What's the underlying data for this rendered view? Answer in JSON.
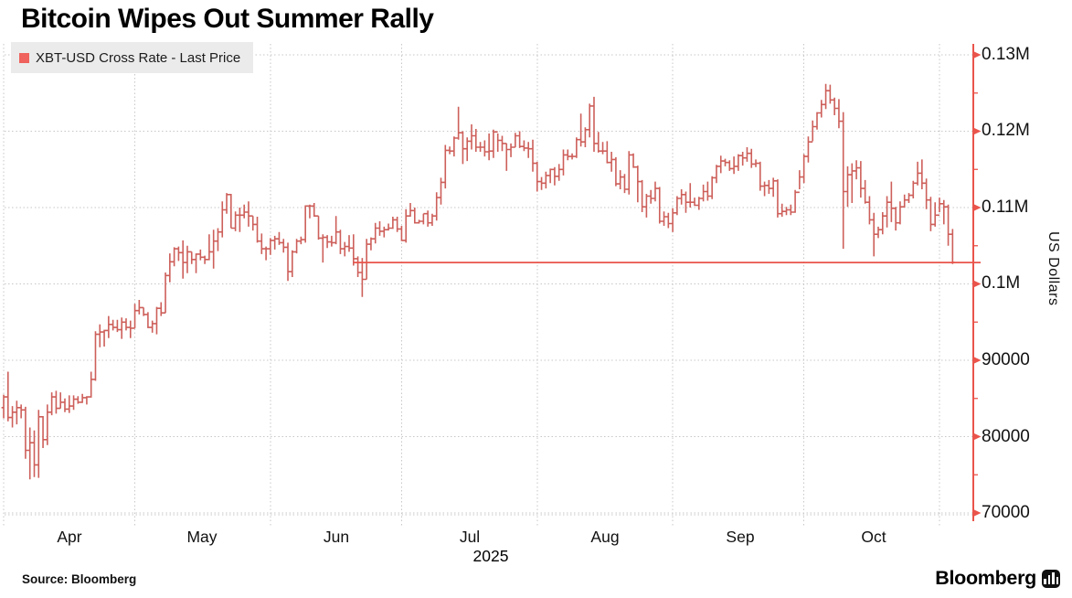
{
  "title": "Bitcoin Wipes Out Summer Rally",
  "legend": {
    "label": "XBT-USD Cross Rate - Last Price",
    "swatch_color": "#ef625d"
  },
  "source": "Source: Bloomberg",
  "branding": {
    "wordmark": "Bloomberg",
    "logo_icon": "bloomberg-bars-icon"
  },
  "colors": {
    "series": "#cd5f5a",
    "axis": "#e9544b",
    "grid": "#c7c7c7",
    "legend_bg": "#ebebeb",
    "text": "#000000"
  },
  "chart_data": {
    "type": "bar",
    "subtype": "ohlc-daily-bars",
    "title": "Bitcoin Wipes Out Summer Rally",
    "series_name": "XBT-USD Cross Rate - Last Price",
    "grid": true,
    "legend_position": "top-left",
    "y_axis": {
      "side": "right",
      "title": "US Dollars",
      "tick_labels": [
        "0.13M",
        "0.12M",
        "0.11M",
        "0.1M",
        "90000",
        "80000",
        "70000"
      ],
      "tick_values": [
        130000,
        120000,
        110000,
        100000,
        90000,
        80000,
        70000
      ],
      "minor_tick_values": [
        125000,
        115000,
        105000,
        95000,
        85000,
        75000
      ],
      "range": [
        68800,
        131500
      ]
    },
    "x_axis": {
      "tick_labels": [
        "Apr",
        "May",
        "Jun",
        "Jul",
        "Aug",
        "Sep",
        "Oct"
      ],
      "year_label": "2025",
      "month_start_day_index": [
        0,
        30,
        61,
        91,
        122,
        153,
        183,
        214
      ]
    },
    "last_price_line": {
      "value": 102800,
      "start_date": "2025-06-20",
      "start_day_index": 80
    },
    "bars": {
      "start_date": "2025-04-01",
      "end_date": "2025-11-04",
      "frequency": "daily",
      "n_days": 218,
      "fields": [
        "high",
        "low",
        "close"
      ],
      "unit": "USD",
      "first_open": 83800,
      "values": [
        [
          85500,
          82400,
          85200
        ],
        [
          88500,
          82000,
          82500
        ],
        [
          84000,
          81200,
          83200
        ],
        [
          84700,
          81600,
          83800
        ],
        [
          84200,
          82400,
          83500
        ],
        [
          83900,
          77100,
          78200
        ],
        [
          81200,
          74400,
          79200
        ],
        [
          80800,
          74700,
          76300
        ],
        [
          83500,
          74600,
          82600
        ],
        [
          82700,
          78500,
          79600
        ],
        [
          84200,
          78900,
          83200
        ],
        [
          85800,
          82800,
          85200
        ],
        [
          86000,
          83000,
          83700
        ],
        [
          85800,
          83700,
          84500
        ],
        [
          85000,
          83200,
          83600
        ],
        [
          85400,
          83100,
          84000
        ],
        [
          85400,
          83500,
          84900
        ],
        [
          85300,
          84300,
          84500
        ],
        [
          85600,
          84400,
          85100
        ],
        [
          85300,
          84200,
          85200
        ],
        [
          88500,
          85100,
          87500
        ],
        [
          93800,
          87300,
          93400
        ],
        [
          94700,
          91700,
          93700
        ],
        [
          94000,
          91800,
          93900
        ],
        [
          95800,
          92900,
          94700
        ],
        [
          95300,
          93900,
          94300
        ],
        [
          95300,
          93700,
          94000
        ],
        [
          95600,
          92800,
          95000
        ],
        [
          95500,
          93900,
          94300
        ],
        [
          95200,
          92900,
          94200
        ],
        [
          97400,
          94200,
          96500
        ],
        [
          97900,
          96000,
          96900
        ],
        [
          96900,
          95800,
          96000
        ],
        [
          96300,
          94200,
          94300
        ],
        [
          95200,
          93600,
          94800
        ],
        [
          97000,
          93400,
          96800
        ],
        [
          97600,
          95800,
          96200
        ],
        [
          101500,
          96200,
          101100
        ],
        [
          104000,
          100200,
          102900
        ],
        [
          104800,
          102300,
          104600
        ],
        [
          104900,
          103000,
          104100
        ],
        [
          105700,
          100700,
          102800
        ],
        [
          105000,
          101400,
          104200
        ],
        [
          104200,
          102600,
          103200
        ],
        [
          104000,
          101400,
          103900
        ],
        [
          104500,
          103100,
          103500
        ],
        [
          103700,
          102600,
          103200
        ],
        [
          106500,
          103100,
          104200
        ],
        [
          107100,
          102000,
          105600
        ],
        [
          107300,
          104300,
          106800
        ],
        [
          110800,
          106100,
          109700
        ],
        [
          111900,
          109200,
          111700
        ],
        [
          111800,
          107300,
          107300
        ],
        [
          109500,
          106900,
          109000
        ],
        [
          110000,
          106800,
          109000
        ],
        [
          110400,
          108600,
          109400
        ],
        [
          110800,
          107500,
          108900
        ],
        [
          108900,
          107000,
          107800
        ],
        [
          108800,
          105400,
          105600
        ],
        [
          106600,
          103900,
          104600
        ],
        [
          104900,
          103100,
          104600
        ],
        [
          106000,
          103800,
          105700
        ],
        [
          106300,
          104500,
          105900
        ],
        [
          106800,
          105100,
          105400
        ],
        [
          105900,
          104100,
          104800
        ],
        [
          105400,
          100400,
          101600
        ],
        [
          104400,
          100900,
          104200
        ],
        [
          105900,
          104000,
          105600
        ],
        [
          106200,
          105200,
          105800
        ],
        [
          110300,
          105400,
          110200
        ],
        [
          110400,
          108600,
          110200
        ],
        [
          110600,
          108800,
          108900
        ],
        [
          108900,
          105800,
          106000
        ],
        [
          106500,
          102800,
          106100
        ],
        [
          106400,
          104700,
          105500
        ],
        [
          106300,
          104900,
          105400
        ],
        [
          108900,
          105200,
          106800
        ],
        [
          107100,
          103900,
          104600
        ],
        [
          105500,
          103600,
          104900
        ],
        [
          106400,
          104200,
          104700
        ],
        [
          106500,
          102400,
          103300
        ],
        [
          103600,
          100900,
          101500
        ],
        [
          103400,
          98300,
          100600
        ],
        [
          105900,
          100600,
          105200
        ],
        [
          106100,
          104400,
          105900
        ],
        [
          108000,
          105300,
          107300
        ],
        [
          108200,
          106300,
          106900
        ],
        [
          107500,
          106100,
          107100
        ],
        [
          107900,
          107000,
          107300
        ],
        [
          108800,
          107200,
          108400
        ],
        [
          108800,
          106800,
          107200
        ],
        [
          107600,
          105600,
          105700
        ],
        [
          109800,
          105400,
          108900
        ],
        [
          110600,
          108800,
          109600
        ],
        [
          110000,
          107900,
          108000
        ],
        [
          108400,
          107900,
          108200
        ],
        [
          109200,
          107800,
          109200
        ],
        [
          109600,
          107500,
          108000
        ],
        [
          109200,
          107600,
          108900
        ],
        [
          112000,
          108300,
          111300
        ],
        [
          113900,
          110400,
          113300
        ],
        [
          118200,
          112500,
          117500
        ],
        [
          118000,
          117000,
          117400
        ],
        [
          119300,
          116700,
          119100
        ],
        [
          123200,
          118900,
          119800
        ],
        [
          120000,
          115700,
          117700
        ],
        [
          119200,
          116100,
          118700
        ],
        [
          120900,
          117600,
          119400
        ],
        [
          120300,
          117300,
          117900
        ],
        [
          118600,
          117300,
          117900
        ],
        [
          118800,
          116700,
          117300
        ],
        [
          119700,
          116200,
          117400
        ],
        [
          120200,
          116500,
          119900
        ],
        [
          119700,
          117300,
          118800
        ],
        [
          119400,
          117400,
          118400
        ],
        [
          118400,
          114800,
          117600
        ],
        [
          118400,
          116600,
          117900
        ],
        [
          119800,
          117900,
          119400
        ],
        [
          120000,
          117800,
          118000
        ],
        [
          118800,
          117400,
          117800
        ],
        [
          118600,
          116500,
          117700
        ],
        [
          118900,
          114700,
          115800
        ],
        [
          116000,
          112100,
          113400
        ],
        [
          114000,
          112300,
          113200
        ],
        [
          114700,
          112500,
          114200
        ],
        [
          115100,
          113200,
          115000
        ],
        [
          115300,
          112900,
          114100
        ],
        [
          115700,
          113500,
          115000
        ],
        [
          117600,
          114200,
          116900
        ],
        [
          117600,
          116200,
          116700
        ],
        [
          117100,
          116300,
          116700
        ],
        [
          119200,
          116500,
          118900
        ],
        [
          122300,
          118000,
          118600
        ],
        [
          120500,
          117900,
          120200
        ],
        [
          123600,
          119200,
          123300
        ],
        [
          124500,
          117300,
          118400
        ],
        [
          119900,
          117200,
          117400
        ],
        [
          118600,
          117000,
          117400
        ],
        [
          118700,
          115800,
          115900
        ],
        [
          117300,
          114700,
          116300
        ],
        [
          116600,
          112800,
          113100
        ],
        [
          114900,
          112400,
          114000
        ],
        [
          114400,
          111900,
          112400
        ],
        [
          117400,
          111700,
          116900
        ],
        [
          117100,
          115200,
          115300
        ],
        [
          115500,
          110700,
          113400
        ],
        [
          113600,
          109400,
          110100
        ],
        [
          111800,
          108700,
          111500
        ],
        [
          112300,
          110500,
          111200
        ],
        [
          113400,
          110800,
          112500
        ],
        [
          112700,
          107900,
          108200
        ],
        [
          109500,
          107600,
          108800
        ],
        [
          109300,
          107300,
          107900
        ],
        [
          109900,
          106800,
          109300
        ],
        [
          111500,
          109000,
          111200
        ],
        [
          112400,
          110400,
          111700
        ],
        [
          112100,
          109300,
          110700
        ],
        [
          113200,
          110000,
          110700
        ],
        [
          111300,
          110200,
          110300
        ],
        [
          111400,
          109700,
          111200
        ],
        [
          113000,
          110800,
          112100
        ],
        [
          113400,
          110900,
          111500
        ],
        [
          114100,
          111100,
          113900
        ],
        [
          115600,
          113200,
          115400
        ],
        [
          116800,
          114500,
          116100
        ],
        [
          116400,
          115400,
          115900
        ],
        [
          116200,
          114800,
          115100
        ],
        [
          116700,
          114400,
          115400
        ],
        [
          117000,
          114800,
          116800
        ],
        [
          117300,
          115500,
          116500
        ],
        [
          117900,
          116000,
          117100
        ],
        [
          117700,
          115200,
          115700
        ],
        [
          116300,
          115300,
          115800
        ],
        [
          116000,
          112200,
          112800
        ],
        [
          113400,
          111500,
          112900
        ],
        [
          113600,
          111800,
          112500
        ],
        [
          113900,
          111400,
          113500
        ],
        [
          113700,
          108700,
          109200
        ],
        [
          110500,
          108800,
          109500
        ],
        [
          110100,
          109000,
          109700
        ],
        [
          110400,
          109000,
          109400
        ],
        [
          112300,
          109300,
          112000
        ],
        [
          114900,
          112400,
          114000
        ],
        [
          117000,
          113200,
          116700
        ],
        [
          119300,
          115900,
          118600
        ],
        [
          121400,
          118700,
          120600
        ],
        [
          122500,
          120200,
          122400
        ],
        [
          124100,
          121800,
          123500
        ],
        [
          126200,
          122900,
          125300
        ],
        [
          126100,
          123600,
          124100
        ],
        [
          124400,
          122100,
          123000
        ],
        [
          124200,
          120400,
          121300
        ],
        [
          122500,
          104600,
          112100
        ],
        [
          115400,
          110100,
          114300
        ],
        [
          115800,
          110600,
          114800
        ],
        [
          116200,
          113700,
          115200
        ],
        [
          116100,
          111300,
          112500
        ],
        [
          113600,
          110500,
          110700
        ],
        [
          111500,
          107800,
          108400
        ],
        [
          109300,
          103600,
          106500
        ],
        [
          107500,
          106000,
          107100
        ],
        [
          109400,
          106500,
          108900
        ],
        [
          111500,
          107400,
          110700
        ],
        [
          113400,
          108100,
          109900
        ],
        [
          110100,
          107000,
          108000
        ],
        [
          110800,
          107800,
          110100
        ],
        [
          111700,
          110000,
          111000
        ],
        [
          111900,
          110600,
          111600
        ],
        [
          113500,
          111200,
          113200
        ],
        [
          116000,
          112900,
          114500
        ],
        [
          116300,
          112400,
          113200
        ],
        [
          113800,
          109800,
          111000
        ],
        [
          111400,
          106900,
          107800
        ],
        [
          110700,
          107500,
          109000
        ],
        [
          111300,
          109400,
          110500
        ],
        [
          111000,
          107800,
          110100
        ],
        [
          110400,
          105000,
          106500
        ],
        [
          107200,
          102600,
          102800
        ]
      ]
    }
  }
}
